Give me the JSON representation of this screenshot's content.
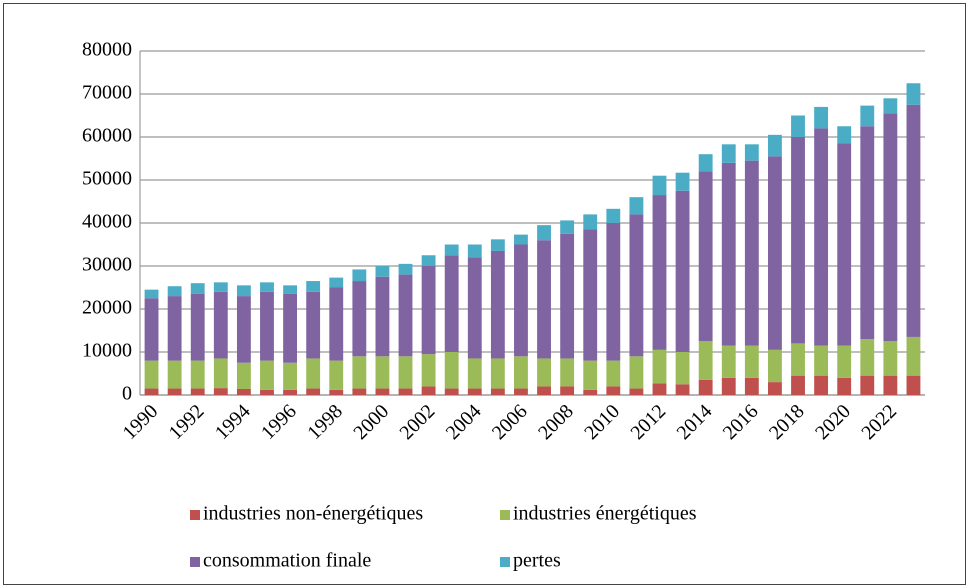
{
  "chart_data": {
    "type": "stacked_bar",
    "categories": [
      "1990",
      null,
      "1992",
      null,
      "1994",
      null,
      "1996",
      null,
      "1998",
      null,
      "2000",
      null,
      "2002",
      null,
      "2004",
      null,
      "2006",
      null,
      "2008",
      null,
      "2010",
      null,
      "2012",
      null,
      "2014",
      null,
      "2016",
      null,
      "2018",
      null,
      "2020",
      null,
      "2022",
      null
    ],
    "series": [
      {
        "name": "industries non-énergétiques",
        "color": "#c0504d",
        "values": [
          1500,
          1500,
          1500,
          1600,
          1400,
          1200,
          1200,
          1500,
          1200,
          1500,
          1500,
          1500,
          2000,
          1500,
          1500,
          1500,
          1500,
          2000,
          2000,
          1200,
          2000,
          1500,
          2700,
          2500,
          3500,
          4000,
          4000,
          3000,
          4500,
          4500,
          4000,
          4500,
          4500,
          4500
        ]
      },
      {
        "name": "industries énergétiques",
        "color": "#9bbb59",
        "values": [
          6500,
          6500,
          6500,
          6900,
          6100,
          6800,
          6300,
          7000,
          6800,
          7500,
          7500,
          7500,
          7500,
          8500,
          7000,
          7000,
          7500,
          6500,
          6500,
          6800,
          6000,
          7500,
          7800,
          7500,
          9000,
          7500,
          7500,
          7500,
          7500,
          7000,
          7500,
          8500,
          8000,
          9000
        ]
      },
      {
        "name": "consommation finale",
        "color": "#8064a2",
        "values": [
          14500,
          15000,
          15500,
          15500,
          15500,
          16000,
          16000,
          15500,
          17000,
          17500,
          18500,
          19000,
          20500,
          22500,
          23500,
          25000,
          26000,
          27500,
          29000,
          30500,
          32000,
          33000,
          36000,
          37500,
          39500,
          42500,
          43000,
          45000,
          48000,
          50500,
          47000,
          49500,
          53000,
          54000
        ]
      },
      {
        "name": "pertes",
        "color": "#4bacc6",
        "values": [
          2000,
          2300,
          2500,
          2200,
          2500,
          2200,
          2000,
          2500,
          2300,
          2700,
          2500,
          2500,
          2500,
          2500,
          3000,
          2700,
          2300,
          3500,
          3100,
          3500,
          3300,
          4000,
          4500,
          4200,
          4000,
          4300,
          3800,
          5000,
          5000,
          5000,
          4000,
          4800,
          3500,
          5000
        ]
      }
    ],
    "ylim": [
      0,
      80000
    ],
    "yticks": [
      0,
      10000,
      20000,
      30000,
      40000,
      50000,
      60000,
      70000,
      80000
    ],
    "grid": true,
    "legend": "bottom"
  }
}
